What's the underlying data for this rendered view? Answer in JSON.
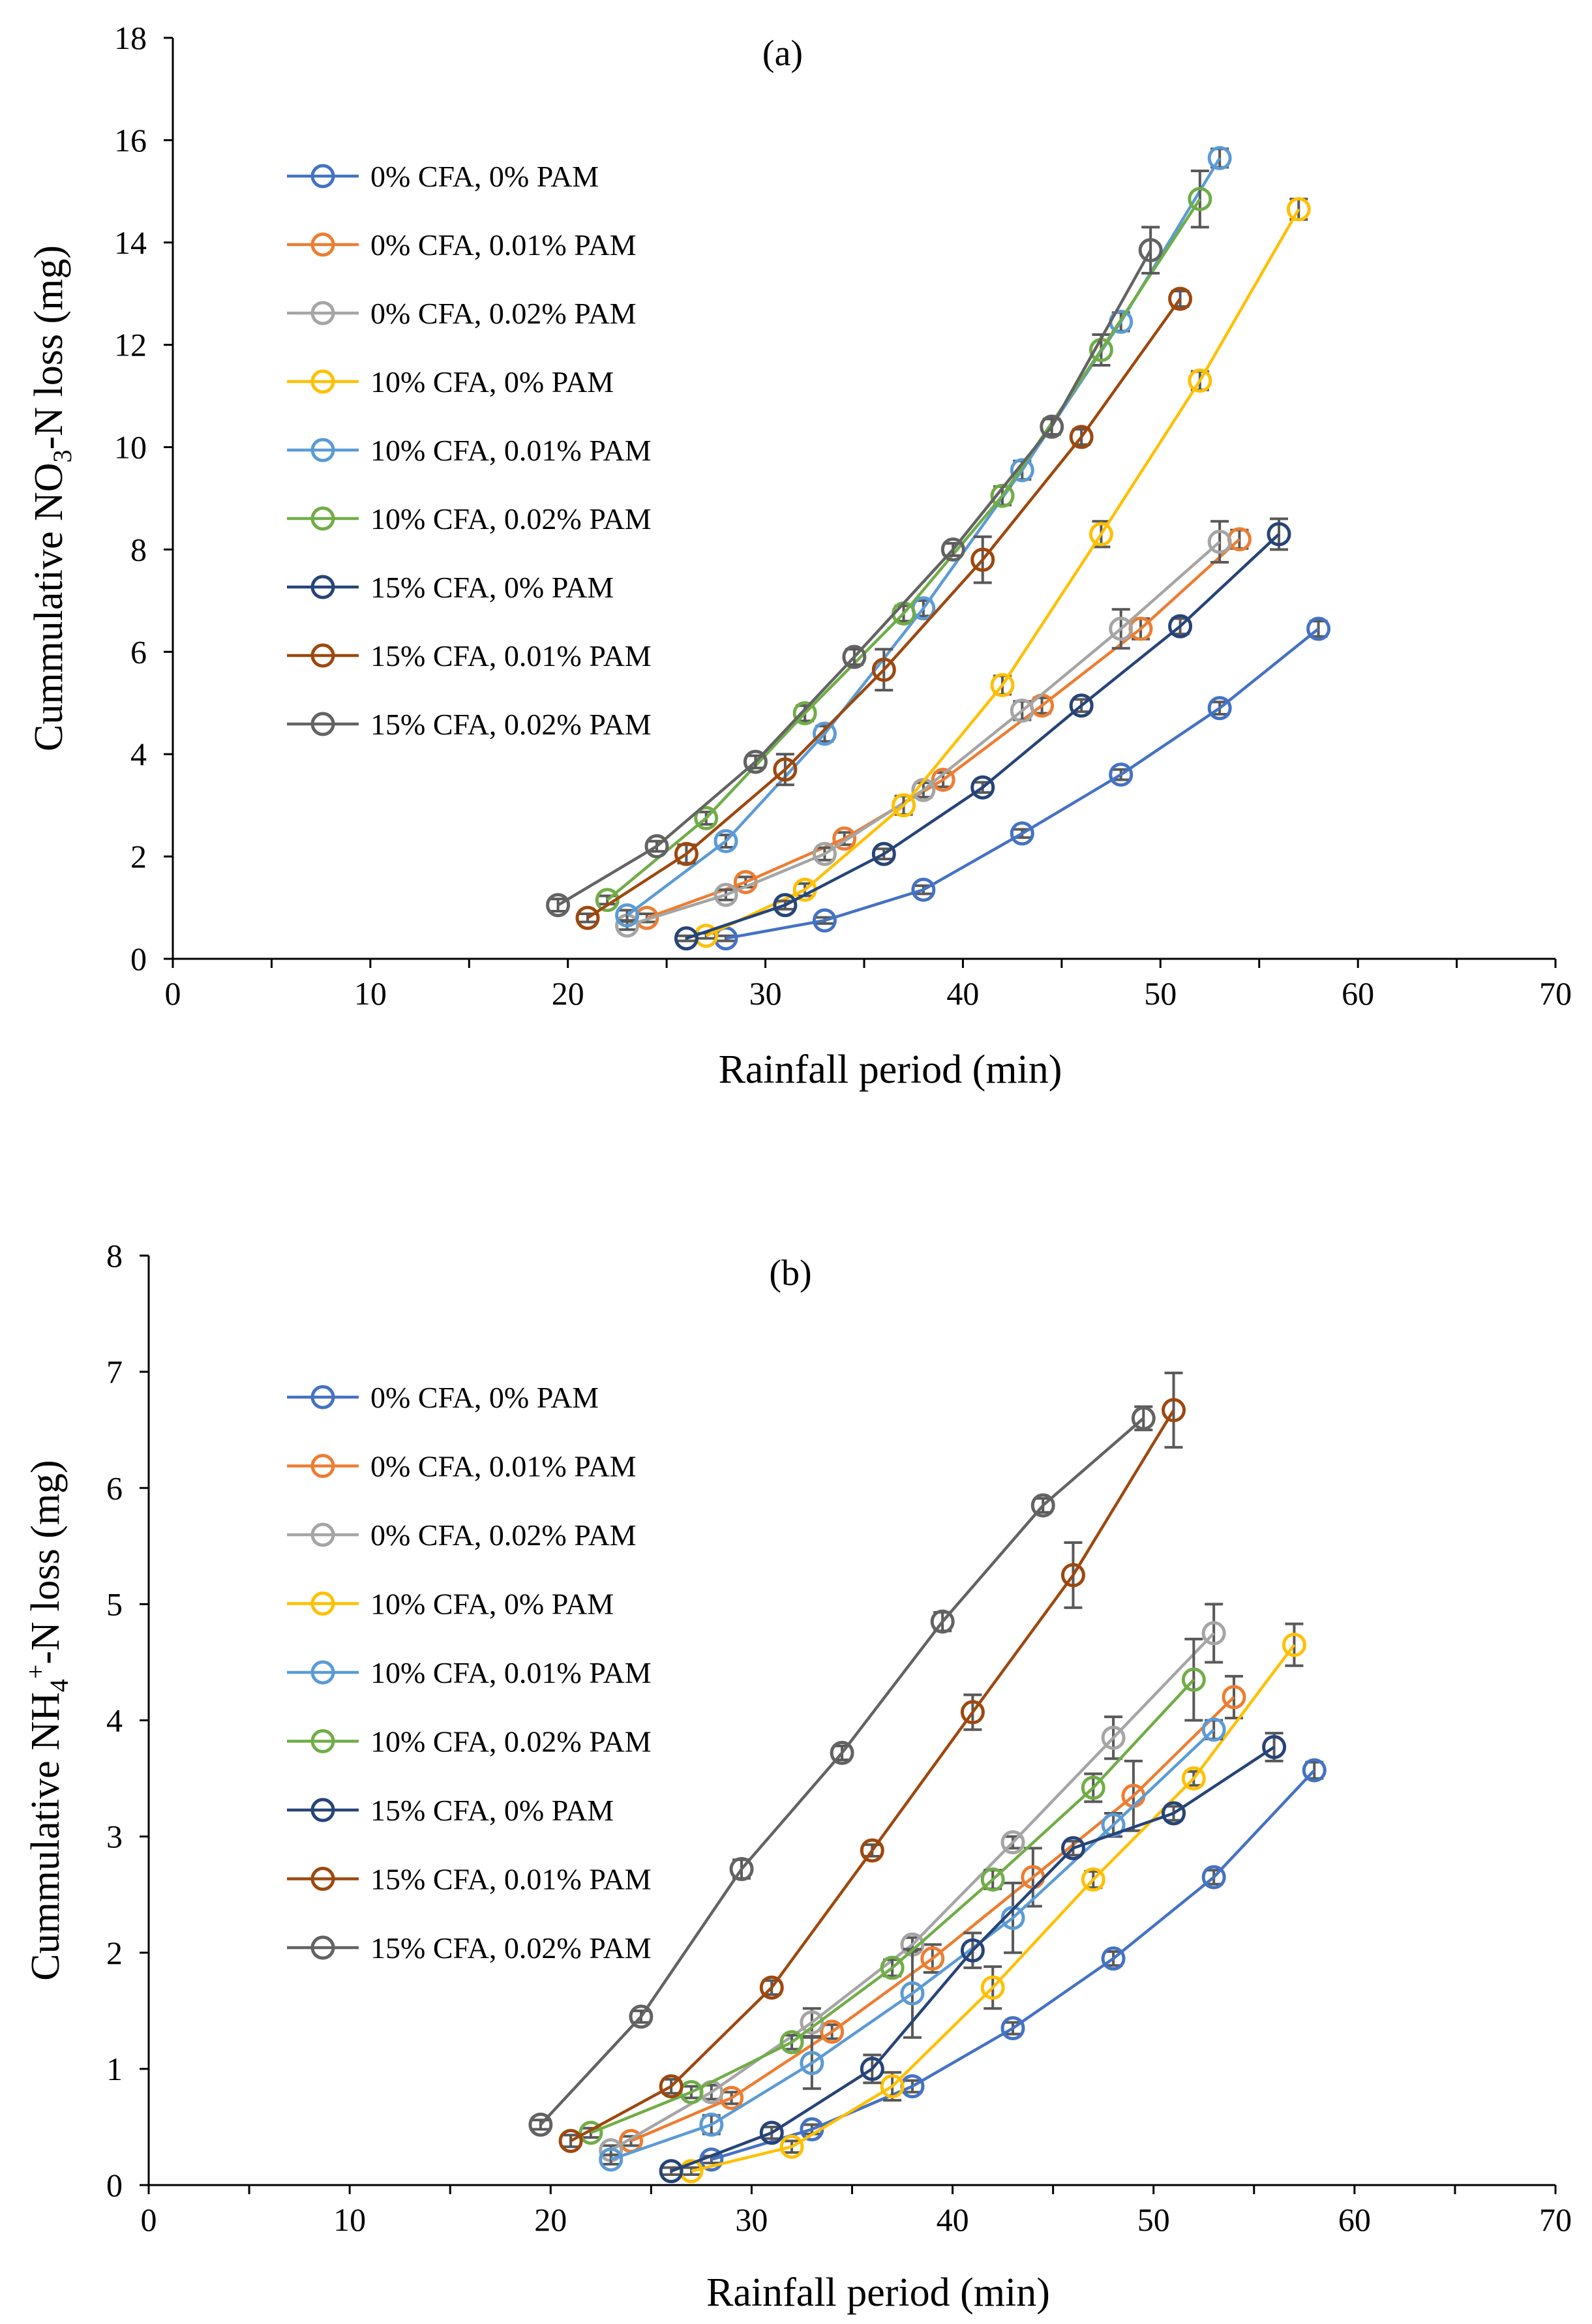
{
  "colors": {
    "s1": "#4472C4",
    "s2": "#ED7D31",
    "s3": "#A5A5A5",
    "s4": "#FFC000",
    "s5": "#5B9BD5",
    "s6": "#70AD47",
    "s7": "#264478",
    "s8": "#9E480E",
    "s9": "#636363"
  },
  "chart_data": [
    {
      "type": "line",
      "id": "a",
      "title": "(a)",
      "xlabel": "Rainfall period (min)",
      "ylabel_parts": [
        "Cummulative NO",
        "3",
        "-N loss (mg)"
      ],
      "xlim": [
        0,
        70
      ],
      "ylim": [
        0,
        18
      ],
      "xticks": [
        0,
        10,
        20,
        30,
        40,
        50,
        60,
        70
      ],
      "yticks": [
        0,
        2,
        4,
        6,
        8,
        10,
        12,
        14,
        16,
        18
      ],
      "legend_position": "upper-left",
      "series": [
        {
          "name": "0% CFA, 0% PAM",
          "color_key": "s1",
          "x": [
            28,
            33,
            38,
            43,
            48,
            53,
            58
          ],
          "y": [
            0.4,
            0.75,
            1.35,
            2.45,
            3.6,
            4.9,
            6.45
          ],
          "err": [
            0.05,
            0.06,
            0.08,
            0.08,
            0.1,
            0.12,
            0.15
          ]
        },
        {
          "name": "0% CFA, 0.01% PAM",
          "color_key": "s2",
          "x": [
            24,
            29,
            34,
            39,
            44,
            49,
            54
          ],
          "y": [
            0.8,
            1.5,
            2.35,
            3.5,
            4.95,
            6.45,
            8.2
          ],
          "err": [
            0.08,
            0.1,
            0.12,
            0.14,
            0.15,
            0.2,
            0.18
          ]
        },
        {
          "name": "0% CFA, 0.02% PAM",
          "color_key": "s3",
          "x": [
            23,
            28,
            33,
            38,
            43,
            48,
            53
          ],
          "y": [
            0.65,
            1.25,
            2.05,
            3.3,
            4.85,
            6.45,
            8.15
          ],
          "err": [
            0.08,
            0.1,
            0.12,
            0.14,
            0.18,
            0.38,
            0.4
          ]
        },
        {
          "name": "10% CFA, 0% PAM",
          "color_key": "s4",
          "x": [
            27,
            32,
            37,
            42,
            47,
            52,
            57
          ],
          "y": [
            0.45,
            1.35,
            3.0,
            5.35,
            8.3,
            11.3,
            14.65
          ],
          "err": [
            0.05,
            0.12,
            0.18,
            0.18,
            0.25,
            0.18,
            0.2
          ]
        },
        {
          "name": "10% CFA, 0.01% PAM",
          "color_key": "s5",
          "x": [
            23,
            28,
            33,
            38,
            43,
            48,
            53
          ],
          "y": [
            0.85,
            2.3,
            4.4,
            6.85,
            9.55,
            12.45,
            15.65
          ],
          "err": [
            0.1,
            0.12,
            0.15,
            0.15,
            0.18,
            0.18,
            0.18
          ]
        },
        {
          "name": "10% CFA, 0.02% PAM",
          "color_key": "s6",
          "x": [
            22,
            27,
            32,
            37,
            42,
            47,
            52
          ],
          "y": [
            1.15,
            2.75,
            4.8,
            6.75,
            9.05,
            11.9,
            14.85
          ],
          "err": [
            0.08,
            0.12,
            0.15,
            0.15,
            0.18,
            0.3,
            0.55
          ]
        },
        {
          "name": "15% CFA, 0% PAM",
          "color_key": "s7",
          "x": [
            26,
            31,
            36,
            41,
            46,
            51,
            56
          ],
          "y": [
            0.4,
            1.05,
            2.05,
            3.35,
            4.95,
            6.5,
            8.3
          ],
          "err": [
            0.05,
            0.08,
            0.1,
            0.1,
            0.12,
            0.15,
            0.3
          ]
        },
        {
          "name": "15% CFA, 0.01% PAM",
          "color_key": "s8",
          "x": [
            21,
            26,
            31,
            36,
            41,
            46,
            51
          ],
          "y": [
            0.8,
            2.05,
            3.7,
            5.65,
            7.8,
            10.2,
            12.9
          ],
          "err": [
            0.08,
            0.18,
            0.3,
            0.4,
            0.45,
            0.15,
            0.15
          ]
        },
        {
          "name": "15% CFA, 0.02% PAM",
          "color_key": "s9",
          "x": [
            19.5,
            24.5,
            29.5,
            34.5,
            39.5,
            44.5,
            49.5
          ],
          "y": [
            1.05,
            2.2,
            3.85,
            5.9,
            8.0,
            10.4,
            13.85
          ],
          "err": [
            0.12,
            0.1,
            0.12,
            0.15,
            0.12,
            0.15,
            0.45
          ]
        }
      ]
    },
    {
      "type": "line",
      "id": "b",
      "title": "(b)",
      "xlabel": "Rainfall period (min)",
      "ylabel_parts": [
        "Cummulative NH",
        "4",
        "+",
        "-N loss (mg)"
      ],
      "xlim": [
        0,
        70
      ],
      "ylim": [
        0,
        8
      ],
      "xticks": [
        0,
        10,
        20,
        30,
        40,
        50,
        60,
        70
      ],
      "yticks": [
        0,
        1,
        2,
        3,
        4,
        5,
        6,
        7,
        8
      ],
      "legend_position": "upper-left",
      "series": [
        {
          "name": "0% CFA, 0% PAM",
          "color_key": "s1",
          "x": [
            28,
            33,
            38,
            43,
            48,
            53,
            58
          ],
          "y": [
            0.22,
            0.48,
            0.85,
            1.35,
            1.95,
            2.65,
            3.57
          ],
          "err": [
            0.03,
            0.04,
            0.05,
            0.05,
            0.06,
            0.06,
            0.07
          ]
        },
        {
          "name": "0% CFA, 0.01% PAM",
          "color_key": "s2",
          "x": [
            24,
            29,
            34,
            39,
            44,
            49,
            54
          ],
          "y": [
            0.38,
            0.75,
            1.32,
            1.95,
            2.65,
            3.35,
            4.2
          ],
          "err": [
            0.04,
            0.05,
            0.06,
            0.12,
            0.25,
            0.3,
            0.18
          ]
        },
        {
          "name": "0% CFA, 0.02% PAM",
          "color_key": "s3",
          "x": [
            23,
            28,
            33,
            38,
            43,
            48,
            53
          ],
          "y": [
            0.3,
            0.8,
            1.4,
            2.07,
            2.95,
            3.85,
            4.75
          ],
          "err": [
            0.04,
            0.06,
            0.12,
            0.06,
            0.05,
            0.18,
            0.25
          ]
        },
        {
          "name": "10% CFA, 0% PAM",
          "color_key": "s4",
          "x": [
            27,
            32,
            37,
            42,
            47,
            52,
            57
          ],
          "y": [
            0.12,
            0.33,
            0.85,
            1.7,
            2.63,
            3.5,
            4.65
          ],
          "err": [
            0.03,
            0.05,
            0.12,
            0.18,
            0.07,
            0.06,
            0.18
          ]
        },
        {
          "name": "10% CFA, 0.01% PAM",
          "color_key": "s5",
          "x": [
            23,
            28,
            33,
            38,
            43,
            48,
            53
          ],
          "y": [
            0.22,
            0.52,
            1.05,
            1.65,
            2.3,
            3.1,
            3.92
          ],
          "err": [
            0.04,
            0.08,
            0.22,
            0.38,
            0.3,
            0.1,
            0.08
          ]
        },
        {
          "name": "10% CFA, 0.02% PAM",
          "color_key": "s6",
          "x": [
            22,
            27,
            32,
            37,
            42,
            47,
            52
          ],
          "y": [
            0.45,
            0.8,
            1.23,
            1.87,
            2.63,
            3.42,
            4.35
          ],
          "err": [
            0.04,
            0.05,
            0.06,
            0.07,
            0.08,
            0.12,
            0.35
          ]
        },
        {
          "name": "15% CFA, 0% PAM",
          "color_key": "s7",
          "x": [
            26,
            31,
            36,
            41,
            46,
            51,
            56
          ],
          "y": [
            0.12,
            0.45,
            1.0,
            2.02,
            2.9,
            3.2,
            3.77
          ],
          "err": [
            0.03,
            0.05,
            0.12,
            0.15,
            0.06,
            0.06,
            0.12
          ]
        },
        {
          "name": "15% CFA, 0.01% PAM",
          "color_key": "s8",
          "x": [
            21,
            26,
            31,
            36,
            41,
            46,
            51
          ],
          "y": [
            0.38,
            0.85,
            1.7,
            2.88,
            4.07,
            5.25,
            6.67
          ],
          "err": [
            0.05,
            0.06,
            0.06,
            0.05,
            0.15,
            0.28,
            0.32
          ]
        },
        {
          "name": "15% CFA, 0.02% PAM",
          "color_key": "s9",
          "x": [
            19.5,
            24.5,
            29.5,
            34.5,
            39.5,
            44.5,
            49.5
          ],
          "y": [
            0.52,
            1.45,
            2.72,
            3.72,
            4.85,
            5.85,
            6.6
          ],
          "err": [
            0.04,
            0.05,
            0.08,
            0.06,
            0.08,
            0.06,
            0.1
          ]
        }
      ]
    }
  ]
}
